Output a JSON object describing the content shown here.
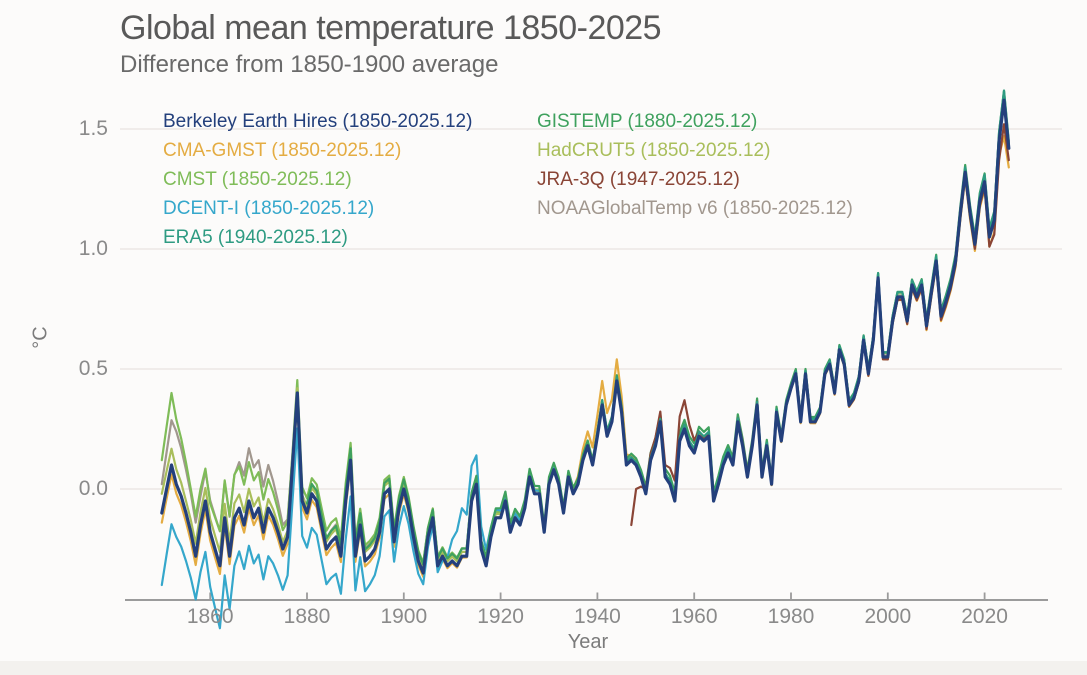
{
  "title": "Global mean temperature 1850-2025",
  "subtitle": "Difference from 1850-1900 average",
  "chart_data": {
    "type": "line",
    "title": "Global mean temperature 1850-2025",
    "subtitle": "Difference from 1850-1900 average",
    "xlabel": "Year",
    "ylabel": "°C",
    "x_ticks": [
      1860,
      1880,
      1900,
      1920,
      1940,
      1960,
      1980,
      2000,
      2020
    ],
    "y_ticks": [
      0.0,
      0.5,
      1.0,
      1.5
    ],
    "y_tick_labels": [
      "0.0",
      "0.5",
      "1.0",
      "1.5"
    ],
    "xlim": [
      1850,
      2025
    ],
    "ylim": [
      -0.5,
      1.7
    ],
    "grid": "horizontal",
    "legend_position": "top-inside-two-columns",
    "x_start_year": 1850,
    "ensemble_mean_by_year": [
      -0.1,
      0.0,
      0.1,
      0.02,
      -0.03,
      -0.1,
      -0.18,
      -0.28,
      -0.15,
      -0.05,
      -0.18,
      -0.25,
      -0.32,
      -0.12,
      -0.28,
      -0.12,
      -0.08,
      -0.15,
      -0.05,
      -0.12,
      -0.08,
      -0.18,
      -0.08,
      -0.12,
      -0.18,
      -0.25,
      -0.2,
      0.1,
      0.4,
      -0.05,
      -0.1,
      -0.02,
      -0.05,
      -0.15,
      -0.25,
      -0.22,
      -0.2,
      -0.28,
      -0.05,
      0.12,
      -0.28,
      -0.15,
      -0.3,
      -0.28,
      -0.25,
      -0.18,
      -0.02,
      0.0,
      -0.22,
      -0.08,
      0.0,
      -0.08,
      -0.2,
      -0.3,
      -0.35,
      -0.2,
      -0.12,
      -0.32,
      -0.28,
      -0.32,
      -0.3,
      -0.32,
      -0.28,
      -0.28,
      -0.05,
      0.02,
      -0.25,
      -0.32,
      -0.2,
      -0.12,
      -0.12,
      -0.05,
      -0.18,
      -0.12,
      -0.15,
      -0.08,
      0.05,
      -0.02,
      -0.02,
      -0.18,
      0.02,
      0.08,
      0.02,
      -0.1,
      0.05,
      -0.02,
      0.02,
      0.12,
      0.18,
      0.1,
      0.22,
      0.35,
      0.22,
      0.28,
      0.45,
      0.32,
      0.1,
      0.12,
      0.1,
      0.05,
      -0.02,
      0.12,
      0.18,
      0.28,
      0.05,
      0.02,
      -0.05,
      0.2,
      0.25,
      0.18,
      0.15,
      0.22,
      0.2,
      0.22,
      -0.05,
      0.02,
      0.1,
      0.15,
      0.1,
      0.28,
      0.18,
      0.05,
      0.18,
      0.35,
      0.05,
      0.18,
      0.02,
      0.32,
      0.2,
      0.35,
      0.42,
      0.48,
      0.28,
      0.48,
      0.28,
      0.28,
      0.32,
      0.48,
      0.52,
      0.4,
      0.58,
      0.52,
      0.35,
      0.38,
      0.45,
      0.62,
      0.48,
      0.62,
      0.88,
      0.55,
      0.55,
      0.7,
      0.8,
      0.8,
      0.7,
      0.85,
      0.8,
      0.85,
      0.68,
      0.82,
      0.95,
      0.72,
      0.78,
      0.85,
      0.95,
      1.15,
      1.32,
      1.15,
      1.02,
      1.2,
      1.28,
      1.05,
      1.12,
      1.45,
      1.62,
      1.42
    ],
    "draw_order": [
      "noaa",
      "cmst",
      "hadcrut5",
      "cma_gmst",
      "dcent",
      "gistemp",
      "jra3q",
      "era5",
      "berkeley"
    ],
    "series": [
      {
        "id": "berkeley",
        "label": "Berkeley Earth Hires (1850-2025.12)",
        "color": "#24407C",
        "start_year": 1850,
        "line_width": 3.2,
        "offset_anchors": [
          [
            1850,
            0
          ],
          [
            2025,
            0
          ]
        ]
      },
      {
        "id": "cma_gmst",
        "label": "CMA-GMST (1850-2025.12)",
        "color": "#E4AC42",
        "start_year": 1850,
        "line_width": 2.2,
        "offset_anchors": [
          [
            1850,
            -0.04
          ],
          [
            1870,
            -0.03
          ],
          [
            1900,
            -0.02
          ],
          [
            1935,
            0.02
          ],
          [
            1941,
            0.1
          ],
          [
            1944,
            0.09
          ],
          [
            1947,
            0.02
          ],
          [
            1960,
            0
          ],
          [
            2000,
            -0.01
          ],
          [
            2020,
            -0.03
          ],
          [
            2023,
            -0.06
          ],
          [
            2024,
            -0.15
          ],
          [
            2025,
            -0.08
          ]
        ]
      },
      {
        "id": "cmst",
        "label": "CMST (1850-2025.12)",
        "color": "#7FBC58",
        "start_year": 1850,
        "line_width": 2.2,
        "offset_anchors": [
          [
            1850,
            0.22
          ],
          [
            1852,
            0.3
          ],
          [
            1856,
            0.18
          ],
          [
            1860,
            0.12
          ],
          [
            1865,
            0.18
          ],
          [
            1870,
            0.15
          ],
          [
            1877,
            0.05
          ],
          [
            1885,
            0.08
          ],
          [
            1895,
            0.06
          ],
          [
            1905,
            0.04
          ],
          [
            1915,
            0.03
          ],
          [
            1925,
            0.02
          ],
          [
            1940,
            0.01
          ],
          [
            2025,
            0.02
          ]
        ]
      },
      {
        "id": "dcent",
        "label": "DCENT-I (1850-2025.12)",
        "color": "#35A7CB",
        "start_year": 1850,
        "line_width": 2.2,
        "offset_anchors": [
          [
            1850,
            -0.3
          ],
          [
            1853,
            -0.22
          ],
          [
            1857,
            -0.18
          ],
          [
            1862,
            -0.26
          ],
          [
            1866,
            -0.18
          ],
          [
            1872,
            -0.2
          ],
          [
            1877,
            -0.15
          ],
          [
            1882,
            -0.14
          ],
          [
            1888,
            -0.16
          ],
          [
            1895,
            -0.1
          ],
          [
            1902,
            -0.06
          ],
          [
            1908,
            -0.02
          ],
          [
            1912,
            0.2
          ],
          [
            1915,
            0.12
          ],
          [
            1918,
            0.04
          ],
          [
            1922,
            0.02
          ],
          [
            1930,
            0.01
          ],
          [
            1940,
            0
          ],
          [
            2025,
            0
          ]
        ]
      },
      {
        "id": "era5",
        "label": "ERA5 (1940-2025.12)",
        "color": "#2E9B82",
        "start_year": 1940,
        "line_width": 2.2,
        "offset_anchors": [
          [
            1940,
            0.02
          ],
          [
            1950,
            0.01
          ],
          [
            1960,
            0.02
          ],
          [
            1980,
            0.01
          ],
          [
            2000,
            0.02
          ],
          [
            2016,
            0.02
          ],
          [
            2024,
            0.04
          ],
          [
            2025,
            0.02
          ]
        ]
      },
      {
        "id": "gistemp",
        "label": "GISTEMP (1880-2025.12)",
        "color": "#3FA15E",
        "start_year": 1880,
        "line_width": 2.2,
        "offset_anchors": [
          [
            1880,
            0.04
          ],
          [
            1890,
            0.05
          ],
          [
            1900,
            0.04
          ],
          [
            1910,
            0.03
          ],
          [
            1920,
            0.04
          ],
          [
            1930,
            0.03
          ],
          [
            1940,
            0.02
          ],
          [
            1950,
            0.03
          ],
          [
            1960,
            0.04
          ],
          [
            1970,
            0.03
          ],
          [
            1980,
            0.02
          ],
          [
            2000,
            0.02
          ],
          [
            2016,
            0.03
          ],
          [
            2024,
            0.04
          ],
          [
            2025,
            0.03
          ]
        ]
      },
      {
        "id": "hadcrut5",
        "label": "HadCRUT5 (1850-2025.12)",
        "color": "#A9BE5B",
        "start_year": 1850,
        "line_width": 2.2,
        "offset_anchors": [
          [
            1850,
            0.08
          ],
          [
            1855,
            0.05
          ],
          [
            1865,
            0.06
          ],
          [
            1878,
            0.02
          ],
          [
            1890,
            0.04
          ],
          [
            1905,
            0.02
          ],
          [
            1940,
            0.01
          ],
          [
            2025,
            0
          ]
        ]
      },
      {
        "id": "jra3q",
        "label": "JRA-3Q (1947-2025.12)",
        "color": "#8A4536",
        "start_year": 1947,
        "line_width": 2.2,
        "offset_anchors": [
          [
            1947,
            -0.27
          ],
          [
            1948,
            -0.1
          ],
          [
            1950,
            0.02
          ],
          [
            1954,
            0.05
          ],
          [
            1958,
            0.12
          ],
          [
            1961,
            0.02
          ],
          [
            1965,
            0
          ],
          [
            1970,
            0.02
          ],
          [
            1980,
            0
          ],
          [
            2000,
            -0.01
          ],
          [
            2020,
            -0.02
          ],
          [
            2024,
            -0.1
          ],
          [
            2025,
            -0.05
          ]
        ]
      },
      {
        "id": "noaa",
        "label": "NOAAGlobalTemp v6 (1850-2025.12)",
        "color": "#A1978E",
        "start_year": 1850,
        "line_width": 2.2,
        "offset_anchors": [
          [
            1850,
            0.12
          ],
          [
            1853,
            0.22
          ],
          [
            1858,
            0.12
          ],
          [
            1863,
            0.15
          ],
          [
            1868,
            0.22
          ],
          [
            1872,
            0.18
          ],
          [
            1878,
            0.02
          ],
          [
            1888,
            0.06
          ],
          [
            1900,
            0.04
          ],
          [
            1915,
            0.03
          ],
          [
            1930,
            0.01
          ],
          [
            1945,
            0
          ],
          [
            2025,
            0.01
          ]
        ]
      }
    ],
    "legend_columns": [
      [
        "berkeley",
        "cma_gmst",
        "cmst",
        "dcent",
        "era5"
      ],
      [
        "gistemp",
        "hadcrut5",
        "jra3q",
        "noaa"
      ]
    ]
  },
  "style": {
    "title_color": "#595959",
    "subtitle_color": "#6a6a6a",
    "axis_line_color": "#9b9b9b",
    "tick_label_color": "#8a8a8a",
    "gridline_color": "#ebe8e5"
  }
}
